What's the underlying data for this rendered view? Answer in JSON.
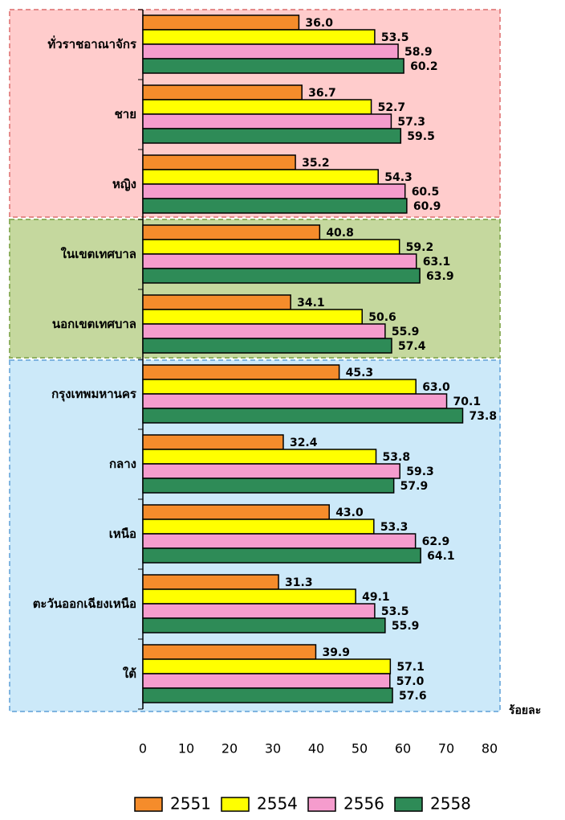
{
  "chart_data": {
    "type": "barh",
    "categories": [
      "ทั่วราชอาณาจักร",
      "ชาย",
      "หญิง",
      "ในเขตเทศบาล",
      "นอกเขตเทศบาล",
      "กรุงเทพมหานคร",
      "กลาง",
      "เหนือ",
      "ตะวันออกเฉียงเหนือ",
      "ใต้"
    ],
    "series": [
      {
        "name": "2551",
        "color": "#f58c2b",
        "values": [
          36.0,
          36.7,
          35.2,
          40.8,
          34.1,
          45.3,
          32.4,
          43.0,
          31.3,
          39.9
        ],
        "value_labels": [
          "36.0",
          "36.7",
          "35.2",
          "40.8",
          "34.1",
          "45.3",
          "32.4",
          "43.0",
          "31.3",
          "39.9"
        ]
      },
      {
        "name": "2554",
        "color": "#ffff00",
        "values": [
          53.5,
          52.7,
          54.3,
          59.2,
          50.6,
          63.0,
          53.8,
          53.3,
          49.1,
          57.1
        ],
        "value_labels": [
          "53.5",
          "52.7",
          "54.3",
          "59.2",
          "50.6",
          "63.0",
          "53.8",
          "53.3",
          "49.1",
          "57.1"
        ]
      },
      {
        "name": "2556",
        "color": "#f59ccd",
        "values": [
          58.9,
          57.3,
          60.5,
          63.1,
          55.9,
          70.1,
          59.3,
          62.9,
          53.5,
          57.0
        ],
        "value_labels": [
          "58.9",
          "57.3",
          "60.5",
          "63.1",
          "55.9",
          "70.1",
          "59.3",
          "62.9",
          "53.5",
          "57.0"
        ]
      },
      {
        "name": "2558",
        "color": "#2e8b57",
        "values": [
          60.2,
          59.5,
          60.9,
          63.9,
          57.4,
          73.8,
          57.9,
          64.1,
          55.9,
          57.6
        ],
        "value_labels": [
          "60.2",
          "59.5",
          "60.9",
          "63.9",
          "57.4",
          "73.8",
          "57.9",
          "64.1",
          "55.9",
          "57.6"
        ]
      }
    ],
    "x_label": "ร้อยละ",
    "xlim": [
      0,
      80
    ],
    "xticks": [
      0,
      10,
      20,
      30,
      40,
      50,
      60,
      70,
      80
    ]
  }
}
